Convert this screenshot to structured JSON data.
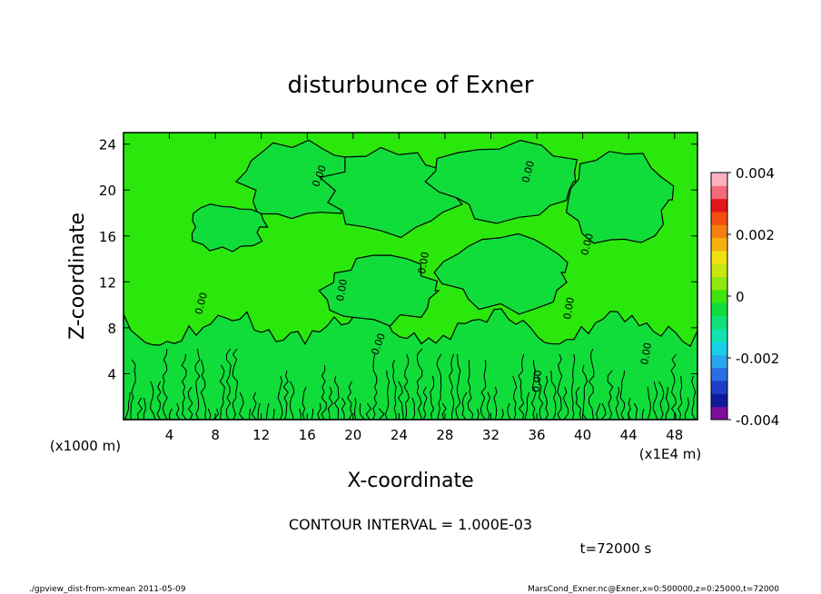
{
  "chart_data": {
    "type": "heatmap",
    "title": "disturbunce of Exner",
    "xlabel": "X-coordinate",
    "ylabel": "Z-coordinate",
    "x_unit_label": "(x1000 m)",
    "x_scale_label": "(x1E4 m)",
    "xlim": [
      0,
      50
    ],
    "ylim": [
      0,
      25
    ],
    "x_ticks": [
      4,
      8,
      12,
      16,
      20,
      24,
      28,
      32,
      36,
      40,
      44,
      48
    ],
    "y_ticks": [
      4,
      8,
      12,
      16,
      20,
      24
    ],
    "colorbar": {
      "range": [
        -0.004,
        0.004
      ],
      "tick_labels": [
        "0.004",
        "0.002",
        "0",
        "-0.002",
        "-0.004"
      ],
      "tick_values": [
        0.004,
        0.002,
        0,
        -0.002,
        -0.004
      ],
      "colors": [
        "#7d0f9c",
        "#0f1a9a",
        "#1f3ec8",
        "#2a6ee6",
        "#2aa6f0",
        "#19d0e6",
        "#12e2b0",
        "#10e07a",
        "#10dd3a",
        "#3fe30f",
        "#8fe80f",
        "#c8e60f",
        "#f2e20f",
        "#f7b10f",
        "#f5800f",
        "#f24e0f",
        "#e01818",
        "#f56a78",
        "#fbb2bd"
      ],
      "zero_color": "#10dd3a"
    },
    "contour_label": "0.00",
    "contour_interval_text": "CONTOUR INTERVAL = 1.000E-03",
    "time_text": "t=72000 s",
    "footer_left": "./gpview_dist-from-xmean   2011-05-09",
    "footer_right": "MarsCond_Exner.nc@Exner,x=0:500000,z=0:25000,t=72000"
  }
}
